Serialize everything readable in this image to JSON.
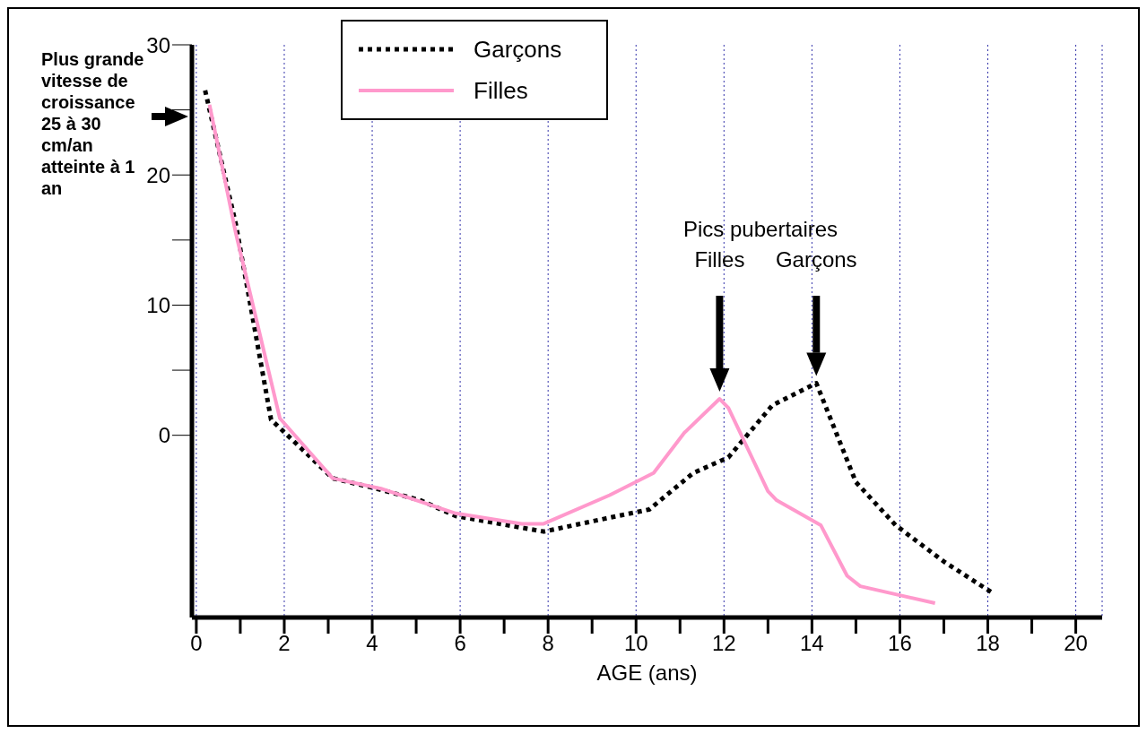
{
  "chart_data": {
    "type": "line",
    "xlabel": "AGE (ans)",
    "xlim": [
      -0.1,
      20.6
    ],
    "xticks": [
      0,
      2,
      4,
      6,
      8,
      10,
      12,
      14,
      16,
      18,
      20
    ],
    "ylim": [
      -14,
      30
    ],
    "yticks": [
      0,
      10,
      20,
      30
    ],
    "grid": "x",
    "legend": "top",
    "series": [
      {
        "name": "Garçons",
        "color": "#000000",
        "line_style": "dotted",
        "x": [
          0.2,
          0.9,
          1.7,
          3.1,
          4.1,
          5.1,
          5.9,
          7.9,
          9.3,
          10.3,
          11.3,
          12.1,
          13.1,
          14.1,
          15.0,
          15.9,
          17.0,
          18.1
        ],
        "values": [
          26.5,
          16.2,
          1.2,
          -3.3,
          -4.1,
          -5.0,
          -6.2,
          -7.4,
          -6.4,
          -5.7,
          -2.9,
          -1.7,
          2.3,
          4.0,
          -3.6,
          -6.9,
          -9.7,
          -12.1
        ]
      },
      {
        "name": "Filles",
        "color": "#ff99cc",
        "line_style": "solid",
        "x": [
          0.3,
          0.9,
          1.9,
          3.1,
          4.2,
          5.9,
          7.4,
          7.9,
          9.4,
          10.4,
          11.1,
          11.9,
          12.1,
          13.0,
          13.2,
          14.2,
          14.8,
          15.1,
          16.8
        ],
        "values": [
          25.4,
          15.5,
          1.3,
          -3.3,
          -4.1,
          -6.0,
          -6.8,
          -6.8,
          -4.6,
          -2.9,
          0.2,
          2.8,
          2.1,
          -4.3,
          -5.0,
          -6.9,
          -10.8,
          -11.6,
          -12.9
        ]
      }
    ],
    "annotations": [
      "Plus grande vitesse de croissance 25 à 30 cm/an atteinte à 1 an",
      "Pics pubertaires",
      "Filles",
      "Garçons"
    ]
  }
}
